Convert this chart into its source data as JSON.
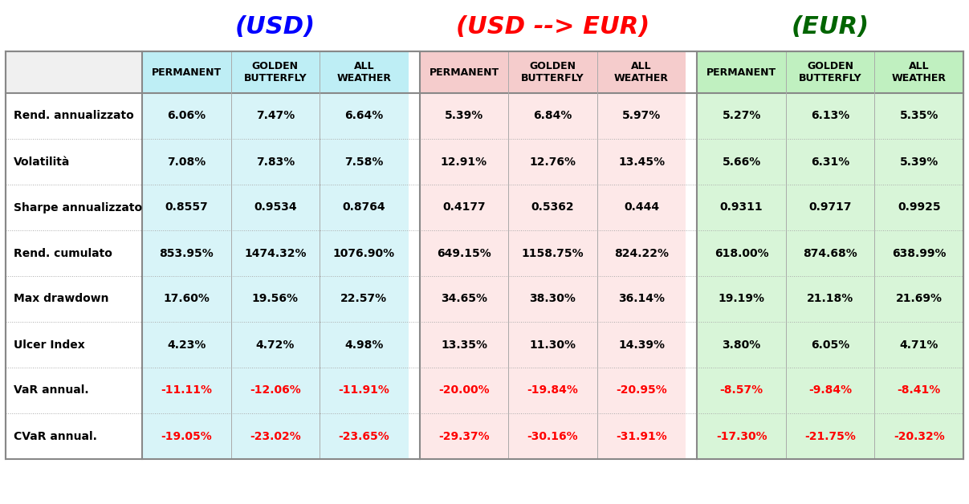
{
  "title_usd": "(USD)",
  "title_usd_eur": "(USD --> EUR)",
  "title_eur": "(EUR)",
  "title_usd_color": "#0000FF",
  "title_usd_eur_color": "#FF0000",
  "title_eur_color": "#006400",
  "col_headers": [
    "PERMANENT",
    "GOLDEN\nBUTTERFLY",
    "ALL\nWEATHER"
  ],
  "row_labels": [
    "Rend. annualizzato",
    "Volatilità",
    "Sharpe annualizzato",
    "Rend. cumulato",
    "Max drawdown",
    "Ulcer Index",
    "VaR annual.",
    "CVaR annual."
  ],
  "usd_data": [
    [
      "6.06%",
      "7.47%",
      "6.64%"
    ],
    [
      "7.08%",
      "7.83%",
      "7.58%"
    ],
    [
      "0.8557",
      "0.9534",
      "0.8764"
    ],
    [
      "853.95%",
      "1474.32%",
      "1076.90%"
    ],
    [
      "17.60%",
      "19.56%",
      "22.57%"
    ],
    [
      "4.23%",
      "4.72%",
      "4.98%"
    ],
    [
      "-11.11%",
      "-12.06%",
      "-11.91%"
    ],
    [
      "-19.05%",
      "-23.02%",
      "-23.65%"
    ]
  ],
  "usd_eur_data": [
    [
      "5.39%",
      "6.84%",
      "5.97%"
    ],
    [
      "12.91%",
      "12.76%",
      "13.45%"
    ],
    [
      "0.4177",
      "0.5362",
      "0.444"
    ],
    [
      "649.15%",
      "1158.75%",
      "824.22%"
    ],
    [
      "34.65%",
      "38.30%",
      "36.14%"
    ],
    [
      "13.35%",
      "11.30%",
      "14.39%"
    ],
    [
      "-20.00%",
      "-19.84%",
      "-20.95%"
    ],
    [
      "-29.37%",
      "-30.16%",
      "-31.91%"
    ]
  ],
  "eur_data": [
    [
      "5.27%",
      "6.13%",
      "5.35%"
    ],
    [
      "5.66%",
      "6.31%",
      "5.39%"
    ],
    [
      "0.9311",
      "0.9717",
      "0.9925"
    ],
    [
      "618.00%",
      "874.68%",
      "638.99%"
    ],
    [
      "19.19%",
      "21.18%",
      "21.69%"
    ],
    [
      "3.80%",
      "6.05%",
      "4.71%"
    ],
    [
      "-8.57%",
      "-9.84%",
      "-8.41%"
    ],
    [
      "-17.30%",
      "-21.75%",
      "-20.32%"
    ]
  ],
  "negative_rows": [
    6,
    7
  ],
  "bg_usd_data": "#d8f4f8",
  "bg_usd_eur_data": "#fde8e8",
  "bg_eur_data": "#d8f5d8",
  "bg_header_usd": "#beeef5",
  "bg_header_usd_eur": "#f5cccc",
  "bg_header_eur": "#c0f0c0",
  "bg_label_col": "#ffffff",
  "text_normal": "#000000",
  "text_negative": "#FF0000",
  "fig_w": 1207,
  "fig_h": 628,
  "title_fontsize": 22,
  "header_fontsize": 9,
  "data_fontsize": 10,
  "label_fontsize": 10
}
